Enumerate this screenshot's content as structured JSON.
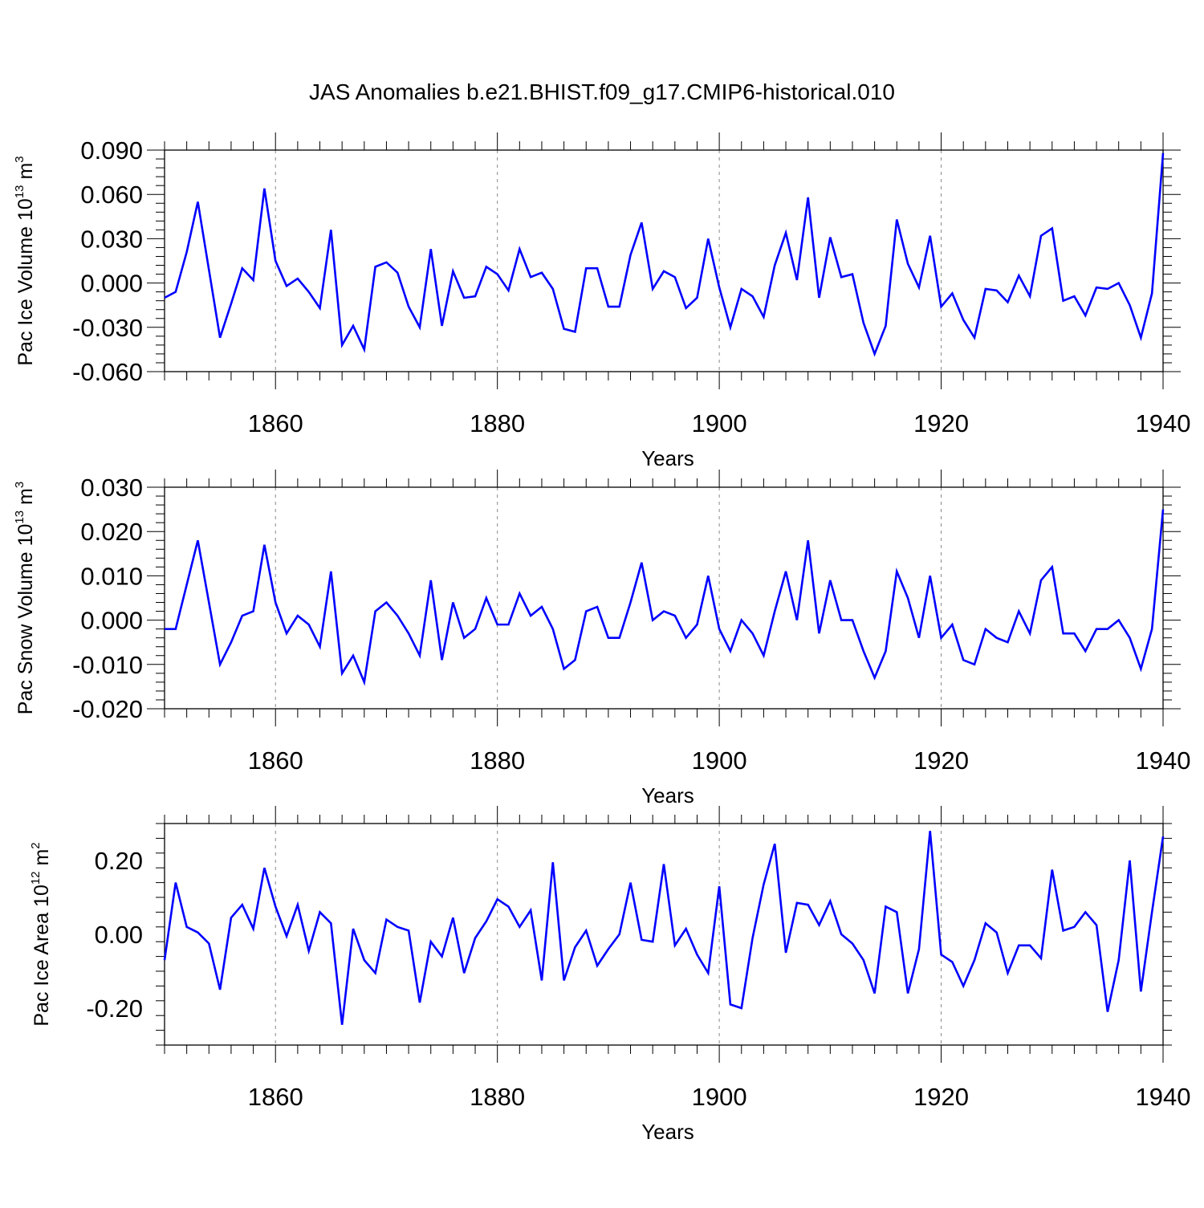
{
  "title": "JAS Anomalies b.e21.BHIST.f09_g17.CMIP6-historical.010",
  "colors": {
    "line": "#0000ff",
    "axis": "#000000",
    "grid": "#888888"
  },
  "chart_data": [
    {
      "type": "line",
      "name": "pac-ice-volume",
      "ylabel": {
        "main": "Pac Ice Volume 10",
        "exp": "13",
        "unit": " m",
        "unit_exp": "3"
      },
      "xlabel": "Years",
      "xlim": [
        1850,
        1940
      ],
      "ylim": [
        -0.06,
        0.09
      ],
      "yticks": [
        -0.06,
        -0.03,
        0.0,
        0.03,
        0.06,
        0.09
      ],
      "ytick_labels": [
        "-0.060",
        "-0.030",
        "0.000",
        "0.030",
        "0.060",
        "0.090"
      ],
      "xticks": [
        1860,
        1880,
        1900,
        1920,
        1940
      ],
      "xtick_labels": [
        "1860",
        "1880",
        "1900",
        "1920",
        "1940"
      ],
      "x_start": 1850,
      "values": [
        -0.01,
        -0.006,
        0.021,
        0.055,
        0.009,
        -0.037,
        -0.014,
        0.01,
        0.002,
        0.064,
        0.015,
        -0.002,
        0.003,
        -0.006,
        -0.017,
        0.036,
        -0.042,
        -0.029,
        -0.045,
        0.011,
        0.014,
        0.007,
        -0.016,
        -0.03,
        0.023,
        -0.029,
        0.008,
        -0.01,
        -0.009,
        0.011,
        0.006,
        -0.005,
        0.023,
        0.004,
        0.007,
        -0.004,
        -0.031,
        -0.033,
        0.01,
        0.01,
        -0.016,
        -0.016,
        0.019,
        0.041,
        -0.004,
        0.008,
        0.004,
        -0.017,
        -0.01,
        0.03,
        -0.003,
        -0.03,
        -0.004,
        -0.009,
        -0.023,
        0.012,
        0.034,
        0.002,
        0.058,
        -0.01,
        0.031,
        0.004,
        0.006,
        -0.027,
        -0.048,
        -0.029,
        0.043,
        0.013,
        -0.003,
        0.032,
        -0.016,
        -0.007,
        -0.025,
        -0.037,
        -0.004,
        -0.005,
        -0.013,
        0.005,
        -0.009,
        0.032,
        0.037,
        -0.012,
        -0.009,
        -0.022,
        -0.003,
        -0.004,
        0.0,
        -0.015,
        -0.037,
        -0.007,
        0.088
      ]
    },
    {
      "type": "line",
      "name": "pac-snow-volume",
      "ylabel": {
        "main": "Pac Snow Volume 10",
        "exp": "13",
        "unit": " m",
        "unit_exp": "3"
      },
      "xlabel": "Years",
      "xlim": [
        1850,
        1940
      ],
      "ylim": [
        -0.02,
        0.03
      ],
      "yticks": [
        -0.02,
        -0.01,
        0.0,
        0.01,
        0.02,
        0.03
      ],
      "ytick_labels": [
        "-0.020",
        "-0.010",
        "0.000",
        "0.010",
        "0.020",
        "0.030"
      ],
      "xticks": [
        1860,
        1880,
        1900,
        1920,
        1940
      ],
      "xtick_labels": [
        "1860",
        "1880",
        "1900",
        "1920",
        "1940"
      ],
      "x_start": 1850,
      "values": [
        -0.002,
        -0.002,
        0.008,
        0.018,
        0.004,
        -0.01,
        -0.005,
        0.001,
        0.002,
        0.017,
        0.004,
        -0.003,
        0.001,
        -0.001,
        -0.006,
        0.011,
        -0.012,
        -0.008,
        -0.014,
        0.002,
        0.004,
        0.001,
        -0.003,
        -0.008,
        0.009,
        -0.009,
        0.004,
        -0.004,
        -0.002,
        0.005,
        -0.001,
        -0.001,
        0.006,
        0.001,
        0.003,
        -0.002,
        -0.011,
        -0.009,
        0.002,
        0.003,
        -0.004,
        -0.004,
        0.004,
        0.013,
        0.0,
        0.002,
        0.001,
        -0.004,
        -0.001,
        0.01,
        -0.002,
        -0.007,
        0.0,
        -0.003,
        -0.008,
        0.002,
        0.011,
        0.0,
        0.018,
        -0.003,
        0.009,
        0.0,
        0.0,
        -0.007,
        -0.013,
        -0.007,
        0.011,
        0.005,
        -0.004,
        0.01,
        -0.004,
        -0.001,
        -0.009,
        -0.01,
        -0.002,
        -0.004,
        -0.005,
        0.002,
        -0.003,
        0.009,
        0.012,
        -0.003,
        -0.003,
        -0.007,
        -0.002,
        -0.002,
        0.0,
        -0.004,
        -0.011,
        -0.002,
        0.025
      ]
    },
    {
      "type": "line",
      "name": "pac-ice-area",
      "ylabel": {
        "main": "Pac Ice Area 10",
        "exp": "12",
        "unit": " m",
        "unit_exp": "2"
      },
      "xlabel": "Years",
      "xlim": [
        1850,
        1940
      ],
      "ylim": [
        -0.3,
        0.3
      ],
      "yticks": [
        -0.2,
        0.0,
        0.2
      ],
      "ytick_labels": [
        "-0.20",
        "0.00",
        "0.20"
      ],
      "xticks": [
        1860,
        1880,
        1900,
        1920,
        1940
      ],
      "xtick_labels": [
        "1860",
        "1880",
        "1900",
        "1920",
        "1940"
      ],
      "x_start": 1850,
      "values": [
        -0.07,
        0.14,
        0.02,
        0.005,
        -0.025,
        -0.15,
        0.045,
        0.08,
        0.015,
        0.18,
        0.075,
        -0.005,
        0.08,
        -0.045,
        0.06,
        0.03,
        -0.245,
        0.015,
        -0.07,
        -0.105,
        0.04,
        0.02,
        0.01,
        -0.185,
        -0.02,
        -0.06,
        0.045,
        -0.105,
        -0.01,
        0.035,
        0.095,
        0.075,
        0.02,
        0.065,
        -0.125,
        0.195,
        -0.125,
        -0.035,
        0.01,
        -0.085,
        -0.04,
        0.0,
        0.14,
        -0.015,
        -0.02,
        0.19,
        -0.03,
        0.015,
        -0.055,
        -0.105,
        0.13,
        -0.19,
        -0.2,
        -0.01,
        0.135,
        0.245,
        -0.05,
        0.085,
        0.08,
        0.025,
        0.09,
        0.0,
        -0.025,
        -0.07,
        -0.16,
        0.075,
        0.06,
        -0.16,
        -0.04,
        0.28,
        -0.055,
        -0.075,
        -0.14,
        -0.07,
        0.03,
        0.005,
        -0.105,
        -0.03,
        -0.03,
        -0.065,
        0.175,
        0.01,
        0.02,
        0.06,
        0.025,
        -0.21,
        -0.07,
        0.2,
        -0.155,
        0.06,
        0.265
      ]
    }
  ]
}
